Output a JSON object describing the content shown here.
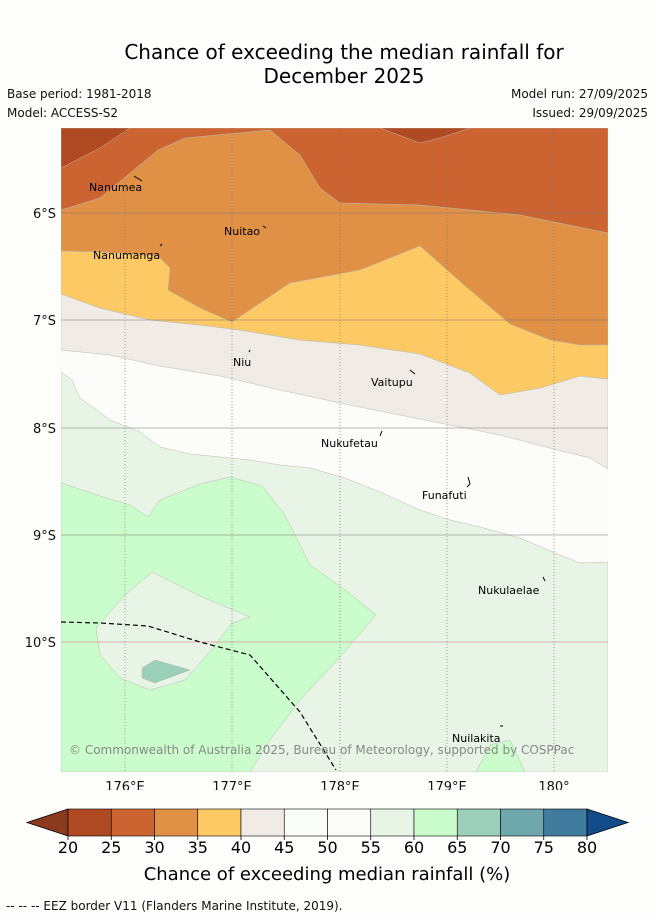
{
  "header": {
    "title_line1": "Chance of exceeding the median rainfall for",
    "title_line2": "December 2025",
    "base_period": "Base period: 1981-2018",
    "model": "Model: ACCESS-S2",
    "model_run": "Model run: 27/09/2025",
    "issued": "Issued: 29/09/2025"
  },
  "map": {
    "lat_labels": [
      "6°S",
      "7°S",
      "8°S",
      "9°S",
      "10°S"
    ],
    "lon_labels": [
      "176°E",
      "177°E",
      "178°E",
      "179°E",
      "180°"
    ],
    "places": [
      {
        "name": "Nanumea"
      },
      {
        "name": "Nuitao"
      },
      {
        "name": "Nanumanga"
      },
      {
        "name": "Niu"
      },
      {
        "name": "Vaitupu"
      },
      {
        "name": "Nukufetau"
      },
      {
        "name": "Funafuti"
      },
      {
        "name": "Nukulaelae"
      },
      {
        "name": "Nuilakita"
      }
    ],
    "copyright": "© Commonwealth of Australia 2025, Bureau of Meteorology, supported by COSPPac"
  },
  "colorbar": {
    "ticks": [
      "20",
      "25",
      "30",
      "35",
      "40",
      "45",
      "50",
      "55",
      "60",
      "65",
      "70",
      "75",
      "80"
    ],
    "label": "Chance of exceeding median rainfall (%)",
    "colors": {
      "under": "#8c3a1e",
      "c20_25": "#b04a22",
      "c25_30": "#cc6431",
      "c30_35": "#e09145",
      "c35_40": "#fdc964",
      "c40_45": "#f1ebe6",
      "c45_50": "#fafcf8",
      "c50_55": "#fcfdfa",
      "c55_60": "#e8f5e6",
      "c60_65": "#cbfccb",
      "c65_70": "#9ccfb9",
      "c70_75": "#6fa8ac",
      "c75_80": "#417c9f",
      "over": "#144b8a"
    }
  },
  "footer": {
    "eez_note": "-- -- -- EEZ border V11 (Flanders Marine Institute, 2019)."
  }
}
